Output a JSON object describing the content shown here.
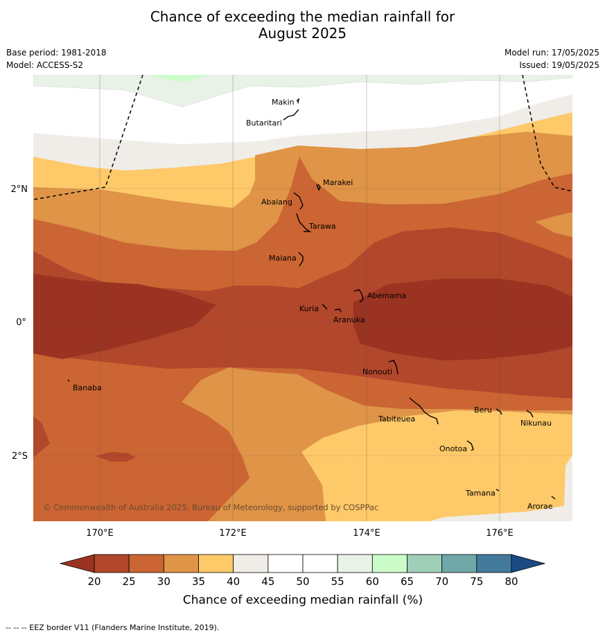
{
  "title_line1": "Chance of exceeding the median rainfall for",
  "title_line2": "August 2025",
  "meta_left": [
    "Base period: 1981-2018",
    "Model: ACCESS-S2"
  ],
  "meta_right": [
    "Model run: 17/05/2025",
    "Issued: 19/05/2025"
  ],
  "lat_labels": [
    "2°N",
    "0°",
    "2°S"
  ],
  "lon_labels": [
    "170°E",
    "172°E",
    "174°E",
    "176°E"
  ],
  "places": [
    {
      "name": "Makin"
    },
    {
      "name": "Butaritari"
    },
    {
      "name": "Marakei"
    },
    {
      "name": "Abaiang"
    },
    {
      "name": "Tarawa"
    },
    {
      "name": "Maiana"
    },
    {
      "name": "Abemama"
    },
    {
      "name": "Kuria"
    },
    {
      "name": "Aranuka"
    },
    {
      "name": "Nonouti"
    },
    {
      "name": "Banaba"
    },
    {
      "name": "Beru"
    },
    {
      "name": "Nikunau"
    },
    {
      "name": "Tabiteuea"
    },
    {
      "name": "Onotoa"
    },
    {
      "name": "Tamana"
    },
    {
      "name": "Arorae"
    }
  ],
  "copyright": "© Commonwealth of Australia 2025, Bureau of Meteorology, supported by COSPPac",
  "colorbar": {
    "ticks": [
      "20",
      "25",
      "30",
      "35",
      "40",
      "45",
      "50",
      "55",
      "60",
      "65",
      "70",
      "75",
      "80"
    ],
    "colors": [
      "#b1472b",
      "#cb6533",
      "#df9447",
      "#fdc969",
      "#f0ede8",
      "#ffffff",
      "#ffffff",
      "#e8f2e6",
      "#ccfcca",
      "#9fcfb9",
      "#70a7a9",
      "#437a9c"
    ],
    "under_color": "#9a3321",
    "over_color": "#1a4a82",
    "label": "Chance of exceeding median rainfall (%)"
  },
  "footer": "--  --  -- EEZ border V11 (Flanders Marine Institute, 2019)."
}
